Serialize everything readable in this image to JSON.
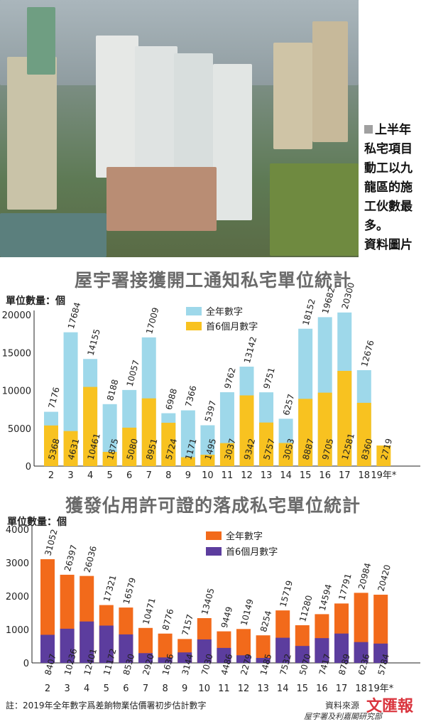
{
  "caption": {
    "lines": [
      "上半年",
      "私宅項目",
      "動工以九",
      "龍區的施",
      "工伙數最",
      "多。",
      "資料圖片"
    ]
  },
  "charts": {
    "top": {
      "title": "屋宇署接獲開工通知私宅單位統計",
      "unit": "單位數量：個"
    },
    "bottom": {
      "title": "獲發佔用許可證的落成私宅單位統計",
      "unit": "單位數量：個"
    }
  },
  "note": "註：2019年全年數字爲差餉物業估價署初步估計數字",
  "source": {
    "label": "資料來源",
    "org": "屋宇署及利嘉閣研究部",
    "logo": "文匯報"
  },
  "colors": {
    "top_full": "#9ed8ea",
    "top_half": "#f8c220",
    "bottom_full": "#f26a1b",
    "bottom_half": "#5c3d9e"
  },
  "chart_data": [
    {
      "type": "bar",
      "title": "屋宇署接獲開工通知私宅單位統計",
      "ylabel": "單位數量：個",
      "categories": [
        "2",
        "3",
        "4",
        "5",
        "6",
        "7",
        "8",
        "9",
        "10",
        "11",
        "12",
        "13",
        "14",
        "15",
        "16",
        "17",
        "18",
        "19年*"
      ],
      "ylim": [
        0,
        20000
      ],
      "yticks": [
        0,
        5000,
        10000,
        15000,
        20000
      ],
      "series": [
        {
          "name": "全年數字",
          "values": [
            7176,
            17684,
            14155,
            8188,
            10057,
            17009,
            6988,
            7366,
            5397,
            9762,
            13142,
            9751,
            6257,
            18152,
            19682,
            20300,
            12676,
            null
          ]
        },
        {
          "name": "首6個月數字",
          "values": [
            5368,
            4631,
            10461,
            1875,
            5080,
            8951,
            5724,
            1171,
            1495,
            3037,
            9342,
            5757,
            3053,
            8887,
            9705,
            12581,
            8360,
            2719
          ]
        }
      ],
      "legend": "top-center"
    },
    {
      "type": "bar",
      "title": "獲發佔用許可證的落成私宅單位統計",
      "ylabel": "單位數量：個",
      "categories": [
        "2",
        "3",
        "4",
        "5",
        "6",
        "7",
        "8",
        "9",
        "10",
        "11",
        "12",
        "13",
        "14",
        "15",
        "16",
        "17",
        "18",
        "19年*"
      ],
      "yticks": [
        0,
        1000,
        2000,
        3000,
        4000
      ],
      "series": [
        {
          "name": "全年數字",
          "values": [
            31052,
            26397,
            26036,
            17321,
            16579,
            10471,
            8776,
            7157,
            13405,
            9449,
            10149,
            8254,
            15719,
            11280,
            14594,
            17791,
            20984,
            20420
          ]
        },
        {
          "name": "首6個月數字",
          "values": [
            8407,
            10236,
            12401,
            11172,
            8530,
            2920,
            1636,
            3144,
            7030,
            4486,
            2279,
            1485,
            7532,
            5070,
            7417,
            8789,
            6236,
            5784
          ]
        }
      ],
      "legend": "top-center"
    }
  ]
}
